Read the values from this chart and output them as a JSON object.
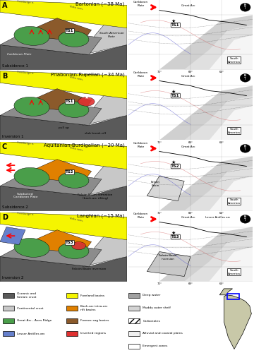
{
  "figure_title": "",
  "panels": [
    {
      "label": "A",
      "title": "Bartonian (~38 Ma)",
      "subtitle": "Subsidence 1"
    },
    {
      "label": "B",
      "title": "Priabonian-Rupelian (~34 Ma)",
      "subtitle": "Inversion 1"
    },
    {
      "label": "C",
      "title": "Aquitanian-Burdigalian (~20 Ma)",
      "subtitle": "Subsidence 2"
    },
    {
      "label": "D",
      "title": "Langhian (~15 Ma)",
      "subtitle": "Inversion 2"
    }
  ],
  "legend_left": [
    {
      "color": "#808080",
      "label": "Oceanic and\nforearc crust"
    },
    {
      "color": "#c0c0c0",
      "label": "Continental crust"
    },
    {
      "color": "#4caf50",
      "label": "Great Arc - Aves Ridge"
    },
    {
      "color": "#5c85d6",
      "label": "Lesser Antilles arc"
    }
  ],
  "legend_mid": [
    {
      "color": "#ffff00",
      "label": "Foreland basins"
    },
    {
      "color": "#ffa500",
      "label": "Back-arc intra-arc\nrift basins"
    },
    {
      "color": "#8b4513",
      "label": "Forearc sag basins"
    },
    {
      "color": "#ff6666",
      "label": "Inverted regions"
    }
  ],
  "legend_far_right": [
    {
      "color": "#a0a0a0",
      "label": "Deep water"
    },
    {
      "color": "#d3d3d3",
      "label": "Muddy outer shelf"
    },
    {
      "color": "hatch",
      "label": "Carbonates"
    },
    {
      "color": "#f0f0f0",
      "label": "Alluvial and coastal plains"
    },
    {
      "color": "#ffffff",
      "label": "Emergent zones"
    }
  ],
  "background_color": "#ffffff",
  "dark_gray": "#5a5a5a",
  "mid_gray": "#8c8c8c",
  "light_gray": "#c8c8c8",
  "green_arc": "#4a9e4a",
  "yellow_foreland": "#f5f500",
  "orange_backarc": "#e08000",
  "brown_forearc": "#8b5a2b",
  "red_inverted": "#e03030",
  "blue_lesser": "#6680cc",
  "font_size_title": 5,
  "font_size_label": 7,
  "font_size_legend": 3.5
}
